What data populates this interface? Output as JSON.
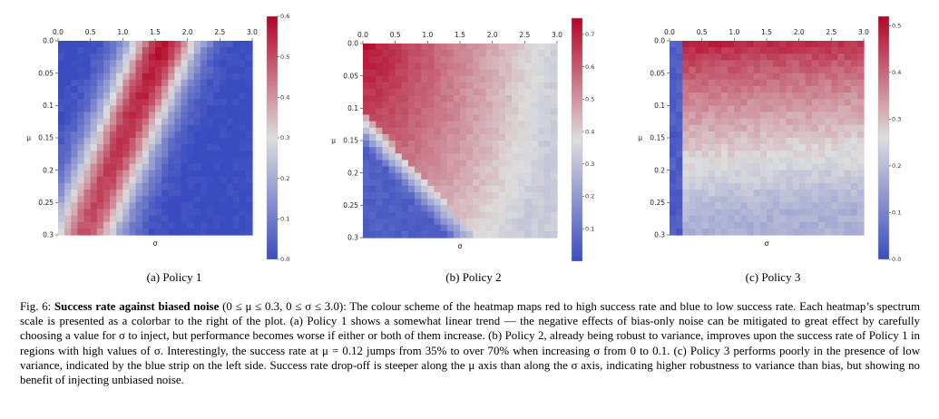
{
  "colors": {
    "low": "#3b4cc0",
    "mid": "#dddddd",
    "high": "#b40426"
  },
  "chart_data": [
    {
      "type": "heatmap",
      "subcaption": "(a) Policy 1",
      "xlabel": "σ",
      "ylabel": "μ",
      "x_ticks": [
        "0.0",
        "0.5",
        "1.0",
        "1.5",
        "2.0",
        "2.5",
        "3.0"
      ],
      "y_ticks": [
        "0.0",
        "0.05",
        "0.1",
        "0.15",
        "0.2",
        "0.25",
        "0.3"
      ],
      "xlim": [
        0,
        3.0
      ],
      "ylim": [
        0,
        0.3
      ],
      "colorbar": {
        "min": 0.0,
        "max": 0.6,
        "ticks": [
          "0.6",
          "0.5",
          "0.4",
          "0.3",
          "0.2",
          "0.1",
          "0.0"
        ]
      },
      "grid": {
        "nx": 30,
        "ny": 30
      },
      "pattern": "diagonal_band",
      "peak_value": 0.58,
      "background_value": 0.0
    },
    {
      "type": "heatmap",
      "subcaption": "(b) Policy 2",
      "xlabel": "σ",
      "ylabel": "μ",
      "x_ticks": [
        "0.0",
        "0.5",
        "1.0",
        "1.5",
        "2.0",
        "2.5",
        "3.0"
      ],
      "y_ticks": [
        "0.0",
        "0.05",
        "0.1",
        "0.15",
        "0.2",
        "0.25",
        "0.3"
      ],
      "xlim": [
        0,
        3.0
      ],
      "ylim": [
        0,
        0.3
      ],
      "colorbar": {
        "min": 0.0,
        "max": 0.75,
        "ticks": [
          "0.7",
          "0.6",
          "0.5",
          "0.4",
          "0.3",
          "0.2",
          "0.1"
        ]
      },
      "grid": {
        "nx": 30,
        "ny": 30
      },
      "pattern": "top_left_high_with_low_corner",
      "peak_value": 0.73,
      "background_value": 0.33
    },
    {
      "type": "heatmap",
      "subcaption": "(c) Policy 3",
      "xlabel": "σ",
      "ylabel": "μ",
      "x_ticks": [
        "0.0",
        "0.5",
        "1.0",
        "1.5",
        "2.0",
        "2.5",
        "3.0"
      ],
      "y_ticks": [
        "0.0",
        "0.05",
        "0.1",
        "0.15",
        "0.2",
        "0.25",
        "0.3"
      ],
      "xlim": [
        0,
        3.0
      ],
      "ylim": [
        0,
        0.3
      ],
      "colorbar": {
        "min": 0.0,
        "max": 0.52,
        "ticks": [
          "0.5",
          "0.4",
          "0.3",
          "0.2",
          "0.1",
          "0.0"
        ]
      },
      "grid": {
        "nx": 30,
        "ny": 30
      },
      "pattern": "top_high_with_left_strip",
      "peak_value": 0.5,
      "background_value": 0.18
    }
  ],
  "caption": {
    "label": "Fig. 6: ",
    "bold": "Success rate against biased noise",
    "math": " (0 ≤ μ ≤ 0.3, 0 ≤ σ ≤ 3.0)",
    "text": ": The colour scheme of the heatmap maps red to high success rate and blue to low success rate. Each heatmap’s spectrum scale is presented as a colorbar to the right of the plot. (a) Policy 1 shows a somewhat linear trend — the negative effects of bias-only noise can be mitigated to great effect by carefully choosing a value for σ to inject, but performance becomes worse if either or both of them increase. (b) Policy 2, already being robust to variance, improves upon the success rate of Policy 1 in regions with high values of σ. Interestingly, the success rate at μ = 0.12 jumps from 35% to over 70% when increasing σ from 0 to 0.1. (c) Policy 3 performs poorly in the presence of low variance, indicated by the blue strip on the left side. Success rate drop-off is steeper along the μ axis than along the σ axis, indicating higher robustness to variance than bias, but showing no benefit of injecting unbiased noise."
  }
}
